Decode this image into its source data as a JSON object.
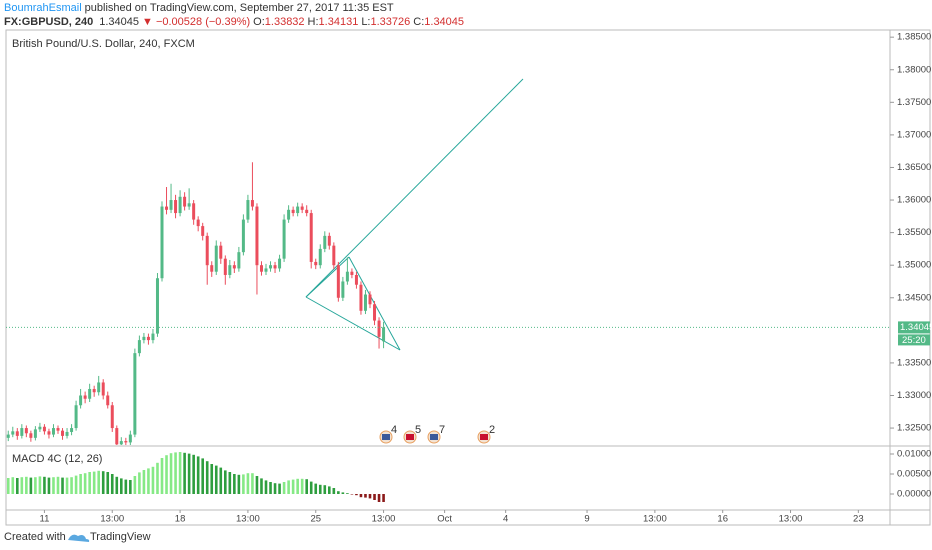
{
  "chart_data": {
    "type": "candlestick",
    "author": "BoumrahEsmail",
    "published": "published on TradingView.com, September 27, 2017 11:35 EST",
    "symbol": "FX:GBPUSD, 240",
    "change": "▼ −0.00528 (−0.39%)",
    "ohlc_labels": [
      "O:",
      "H:",
      "L:",
      "C:"
    ],
    "title": "British Pound/U.S. Dollar, 240, FXCM",
    "indicator_title": "MACD 4C (12, 26)",
    "countdown": "25:20",
    "event_counts": [
      "4",
      "5",
      "7",
      "2"
    ],
    "footer": "Created with",
    "brand": "TradingView",
    "up_color": "#53b987",
    "down_color": "#eb4d5c",
    "last_price_color": "#53b987",
    "ylim": [
      1.3224,
      1.3861
    ],
    "yticks": [
      {
        "value": 1.385,
        "label": "1.38500"
      },
      {
        "value": 1.38,
        "label": "1.38000"
      },
      {
        "value": 1.375,
        "label": "1.37500"
      },
      {
        "value": 1.37,
        "label": "1.37000"
      },
      {
        "value": 1.365,
        "label": "1.36500"
      },
      {
        "value": 1.36,
        "label": "1.36000"
      },
      {
        "value": 1.355,
        "label": "1.35500"
      },
      {
        "value": 1.35,
        "label": "1.35000"
      },
      {
        "value": 1.345,
        "label": "1.34500"
      },
      {
        "value": 1.335,
        "label": "1.33500"
      },
      {
        "value": 1.33,
        "label": "1.33000"
      },
      {
        "value": 1.325,
        "label": "1.32500"
      }
    ],
    "xlim": [
      -0.5,
      195
    ],
    "xticks": [
      {
        "value": 8,
        "label": "11"
      },
      {
        "value": 23,
        "label": "13:00"
      },
      {
        "value": 38,
        "label": "18"
      },
      {
        "value": 53,
        "label": "13:00"
      },
      {
        "value": 68,
        "label": "25"
      },
      {
        "value": 83,
        "label": "13:00"
      },
      {
        "value": 96.5,
        "label": "Oct"
      },
      {
        "value": 110,
        "label": "4"
      },
      {
        "value": 128,
        "label": "9"
      },
      {
        "value": 143,
        "label": "13:00"
      },
      {
        "value": 158,
        "label": "16"
      },
      {
        "value": 173,
        "label": "13:00"
      },
      {
        "value": 188,
        "label": "23"
      }
    ],
    "ohlc": [
      [
        1.3235,
        1.3246,
        1.323,
        1.324
      ],
      [
        1.324,
        1.3252,
        1.3236,
        1.3245
      ],
      [
        1.3245,
        1.325,
        1.3232,
        1.3238
      ],
      [
        1.3238,
        1.3256,
        1.3234,
        1.325
      ],
      [
        1.325,
        1.3254,
        1.3236,
        1.3242
      ],
      [
        1.3242,
        1.3246,
        1.3229,
        1.3235
      ],
      [
        1.3235,
        1.3253,
        1.3231,
        1.3248
      ],
      [
        1.3248,
        1.3258,
        1.3244,
        1.3252
      ],
      [
        1.3252,
        1.3256,
        1.324,
        1.3245
      ],
      [
        1.3245,
        1.3249,
        1.3234,
        1.324
      ],
      [
        1.324,
        1.3256,
        1.3236,
        1.325
      ],
      [
        1.325,
        1.3254,
        1.3241,
        1.3246
      ],
      [
        1.3246,
        1.325,
        1.3232,
        1.3238
      ],
      [
        1.3238,
        1.325,
        1.3234,
        1.3244
      ],
      [
        1.3244,
        1.3256,
        1.3239,
        1.325
      ],
      [
        1.325,
        1.3292,
        1.3246,
        1.3285
      ],
      [
        1.3285,
        1.331,
        1.328,
        1.33
      ],
      [
        1.33,
        1.3306,
        1.3288,
        1.3295
      ],
      [
        1.3295,
        1.3318,
        1.329,
        1.331
      ],
      [
        1.331,
        1.3315,
        1.3298,
        1.3305
      ],
      [
        1.3305,
        1.333,
        1.33,
        1.332
      ],
      [
        1.332,
        1.3325,
        1.3294,
        1.33
      ],
      [
        1.33,
        1.3306,
        1.328,
        1.3285
      ],
      [
        1.3285,
        1.329,
        1.3244,
        1.325
      ],
      [
        1.325,
        1.3254,
        1.3218,
        1.3225
      ],
      [
        1.3225,
        1.3236,
        1.322,
        1.323
      ],
      [
        1.323,
        1.3235,
        1.3222,
        1.3228
      ],
      [
        1.3228,
        1.3246,
        1.3224,
        1.324
      ],
      [
        1.324,
        1.3372,
        1.3236,
        1.3365
      ],
      [
        1.3365,
        1.3392,
        1.336,
        1.3385
      ],
      [
        1.3385,
        1.3396,
        1.338,
        1.339
      ],
      [
        1.339,
        1.3395,
        1.3378,
        1.3385
      ],
      [
        1.3385,
        1.3402,
        1.338,
        1.3395
      ],
      [
        1.3395,
        1.3488,
        1.339,
        1.348
      ],
      [
        1.348,
        1.3598,
        1.3475,
        1.359
      ],
      [
        1.359,
        1.362,
        1.3578,
        1.3585
      ],
      [
        1.3585,
        1.3625,
        1.358,
        1.36
      ],
      [
        1.36,
        1.3608,
        1.3572,
        1.358
      ],
      [
        1.358,
        1.3615,
        1.3575,
        1.3605
      ],
      [
        1.3605,
        1.3612,
        1.3584,
        1.359
      ],
      [
        1.359,
        1.3618,
        1.3585,
        1.3595
      ],
      [
        1.3595,
        1.36,
        1.3562,
        1.357
      ],
      [
        1.357,
        1.3575,
        1.3552,
        1.356
      ],
      [
        1.356,
        1.3565,
        1.3538,
        1.3545
      ],
      [
        1.3545,
        1.355,
        1.347,
        1.35
      ],
      [
        1.35,
        1.3506,
        1.3482,
        1.349
      ],
      [
        1.349,
        1.3538,
        1.3485,
        1.353
      ],
      [
        1.353,
        1.3536,
        1.3502,
        1.351
      ],
      [
        1.351,
        1.3515,
        1.347,
        1.3485
      ],
      [
        1.3485,
        1.3508,
        1.348,
        1.35
      ],
      [
        1.35,
        1.3506,
        1.3488,
        1.3495
      ],
      [
        1.3495,
        1.3528,
        1.349,
        1.352
      ],
      [
        1.352,
        1.3578,
        1.3515,
        1.357
      ],
      [
        1.357,
        1.3608,
        1.3565,
        1.36
      ],
      [
        1.36,
        1.3658,
        1.3584,
        1.359
      ],
      [
        1.359,
        1.3595,
        1.3455,
        1.35
      ],
      [
        1.35,
        1.3506,
        1.3484,
        1.349
      ],
      [
        1.349,
        1.3502,
        1.3485,
        1.3495
      ],
      [
        1.3495,
        1.3506,
        1.349,
        1.35
      ],
      [
        1.35,
        1.3505,
        1.3488,
        1.3495
      ],
      [
        1.3495,
        1.3516,
        1.349,
        1.351
      ],
      [
        1.351,
        1.3578,
        1.3505,
        1.357
      ],
      [
        1.357,
        1.3592,
        1.3565,
        1.3585
      ],
      [
        1.3585,
        1.359,
        1.3575,
        1.358
      ],
      [
        1.358,
        1.3596,
        1.3575,
        1.359
      ],
      [
        1.359,
        1.3595,
        1.358,
        1.3585
      ],
      [
        1.3585,
        1.3592,
        1.3575,
        1.358
      ],
      [
        1.358,
        1.3585,
        1.3495,
        1.3505
      ],
      [
        1.3505,
        1.351,
        1.3494,
        1.35
      ],
      [
        1.35,
        1.3532,
        1.3495,
        1.3525
      ],
      [
        1.3525,
        1.3552,
        1.352,
        1.3545
      ],
      [
        1.3545,
        1.355,
        1.3524,
        1.353
      ],
      [
        1.353,
        1.3535,
        1.3494,
        1.35
      ],
      [
        1.35,
        1.3505,
        1.3444,
        1.345
      ],
      [
        1.345,
        1.3482,
        1.3445,
        1.3475
      ],
      [
        1.3475,
        1.3512,
        1.347,
        1.349
      ],
      [
        1.349,
        1.3495,
        1.348,
        1.3485
      ],
      [
        1.3485,
        1.349,
        1.3464,
        1.347
      ],
      [
        1.347,
        1.3475,
        1.3424,
        1.343
      ],
      [
        1.343,
        1.3462,
        1.3425,
        1.3455
      ],
      [
        1.3455,
        1.346,
        1.3434,
        1.344
      ],
      [
        1.344,
        1.3445,
        1.3408,
        1.3415
      ],
      [
        1.3415,
        1.342,
        1.3372,
        1.339
      ],
      [
        1.33832,
        1.34131,
        1.33726,
        1.34045
      ]
    ],
    "macd": {
      "ylim": [
        -0.004,
        0.01175
      ],
      "yticks": [
        {
          "value": 0.01,
          "label": "0.01000"
        },
        {
          "value": 0.005,
          "label": "0.00500"
        },
        {
          "value": 0,
          "label": "0.00000"
        }
      ],
      "colors": {
        "pos_up": "#86e986",
        "pos_down": "#2e9e3e",
        "neg_down": "#8b1a1a",
        "neg_up": "#e06a6a"
      },
      "values": [
        0.004,
        0.0042,
        0.004,
        0.0042,
        0.0043,
        0.0041,
        0.0042,
        0.0044,
        0.0043,
        0.0041,
        0.0042,
        0.0043,
        0.0041,
        0.0041,
        0.0042,
        0.0046,
        0.005,
        0.0052,
        0.0055,
        0.0056,
        0.0058,
        0.0057,
        0.0055,
        0.005,
        0.0043,
        0.0039,
        0.0036,
        0.0035,
        0.0045,
        0.0054,
        0.006,
        0.0064,
        0.0068,
        0.0078,
        0.009,
        0.0097,
        0.0102,
        0.0104,
        0.0105,
        0.0103,
        0.0101,
        0.0098,
        0.0094,
        0.0089,
        0.0082,
        0.0075,
        0.0071,
        0.0066,
        0.0059,
        0.0055,
        0.005,
        0.0048,
        0.0049,
        0.0052,
        0.0052,
        0.0045,
        0.0039,
        0.0034,
        0.003,
        0.0027,
        0.0026,
        0.003,
        0.0034,
        0.0036,
        0.0038,
        0.0038,
        0.0037,
        0.0031,
        0.0026,
        0.0023,
        0.0022,
        0.0019,
        0.0015,
        0.0007,
        0.0004,
        0.0002,
        -0.0001,
        -0.0003,
        -0.0008,
        -0.0009,
        -0.0011,
        -0.0015,
        -0.002,
        -0.002
      ]
    }
  }
}
